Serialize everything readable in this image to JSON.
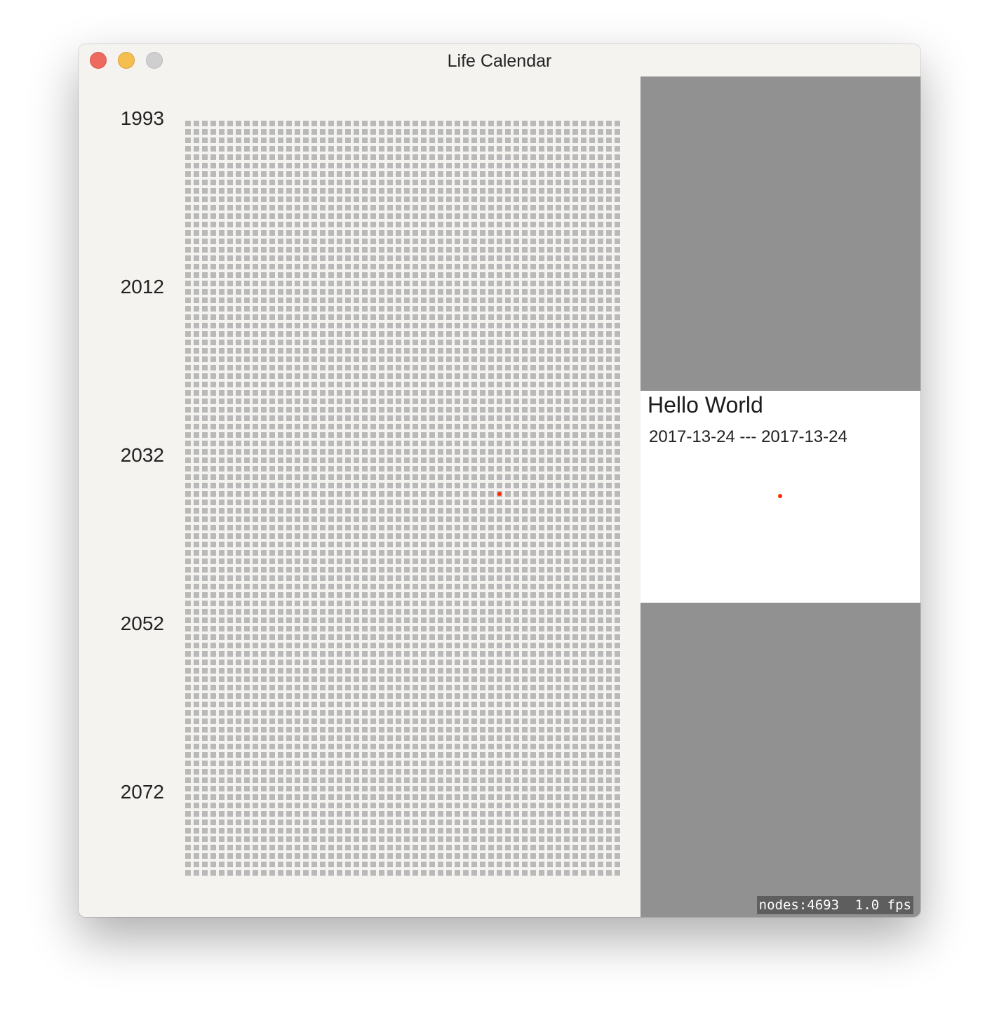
{
  "window": {
    "title": "Life Calendar"
  },
  "years": {
    "labels": [
      "1993",
      "2012",
      "2032",
      "2052",
      "2072"
    ]
  },
  "calendar": {
    "weeks_per_row": 52,
    "rows": 90,
    "current_week": {
      "row": 44,
      "col": 37
    },
    "colors": {
      "week": "#b9b9b9",
      "current": "#ff2a00"
    }
  },
  "detail": {
    "title": "Hello World",
    "date_range": "2017-13-24 --- 2017-13-24",
    "pane_color": "#919191"
  },
  "stats": {
    "text": "nodes:4693  1.0 fps"
  }
}
